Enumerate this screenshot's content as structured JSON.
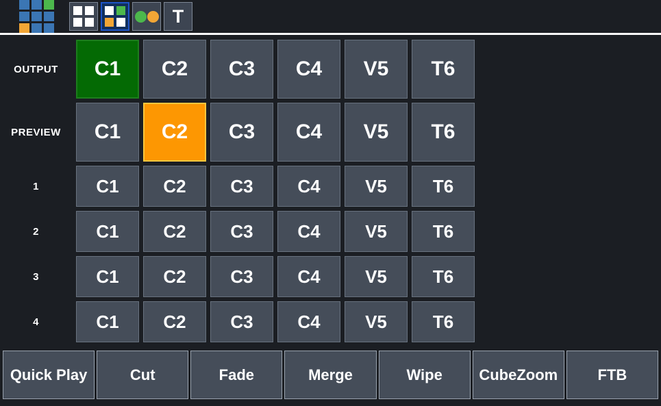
{
  "toolbar": {
    "text_button_label": "T",
    "icons": [
      "app-grid-logo",
      "white-grid-icon",
      "colored-grid-icon",
      "two-dots-icon",
      "text-icon"
    ],
    "selected_button_index": 1
  },
  "matrix": {
    "row_labels": [
      "OUTPUT",
      "PREVIEW",
      "1",
      "2",
      "3",
      "4"
    ],
    "columns": [
      "C1",
      "C2",
      "C3",
      "C4",
      "V5",
      "T6"
    ],
    "output_active": "C1",
    "preview_active": "C2"
  },
  "transitions": {
    "buttons": [
      "Quick Play",
      "Cut",
      "Fade",
      "Merge",
      "Wipe",
      "CubeZoom",
      "FTB"
    ]
  },
  "colors": {
    "background": "#1b1e23",
    "button_slate": "#454d59",
    "program_active": "#046a04",
    "preview_active": "#fd9702",
    "toolbar_selected_bg": "#11305e",
    "toolbar_selected_border": "#1e55c8",
    "icon_blue": "#3b76b4",
    "icon_green": "#4cb84c",
    "icon_orange": "#f2a636",
    "separator": "#ffffff"
  }
}
